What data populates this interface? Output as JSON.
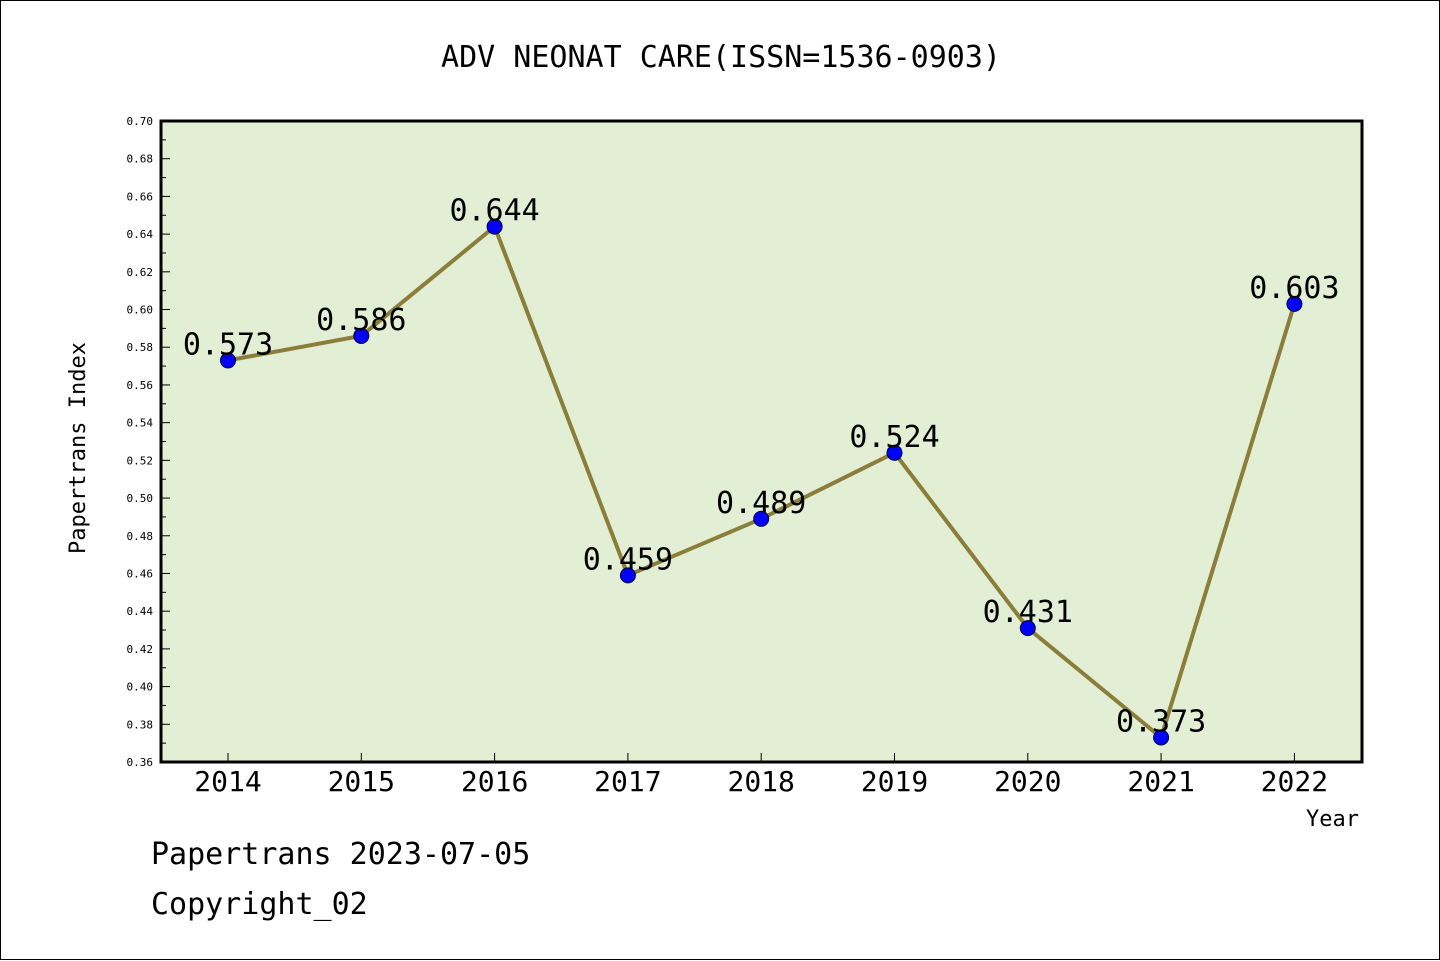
{
  "chart_data": {
    "type": "line",
    "title": "ADV NEONAT CARE(ISSN=1536-0903)",
    "xlabel": "Year",
    "ylabel": "Papertrans Index",
    "categories": [
      "2014",
      "2015",
      "2016",
      "2017",
      "2018",
      "2019",
      "2020",
      "2021",
      "2022"
    ],
    "series": [
      {
        "values": [
          0.573,
          0.586,
          0.644,
          0.459,
          0.489,
          0.524,
          0.431,
          0.373,
          0.603
        ],
        "labels": [
          "0.573",
          "0.586",
          "0.644",
          "0.459",
          "0.489",
          "0.524",
          "0.431",
          "0.373",
          "0.603"
        ]
      }
    ],
    "ylim": [
      0.36,
      0.7
    ],
    "yticks": [
      "0.36",
      "0.38",
      "0.40",
      "0.42",
      "0.44",
      "0.46",
      "0.48",
      "0.50",
      "0.52",
      "0.54",
      "0.56",
      "0.58",
      "0.60",
      "0.62",
      "0.64",
      "0.66",
      "0.68",
      "0.70"
    ],
    "grid": false,
    "colors": {
      "plot_background": "#e2efd4",
      "line": "#8b7d3a",
      "marker": "#0000ff"
    }
  },
  "footer": {
    "line1": "Papertrans 2023-07-05",
    "line2": "Copyright_02"
  }
}
